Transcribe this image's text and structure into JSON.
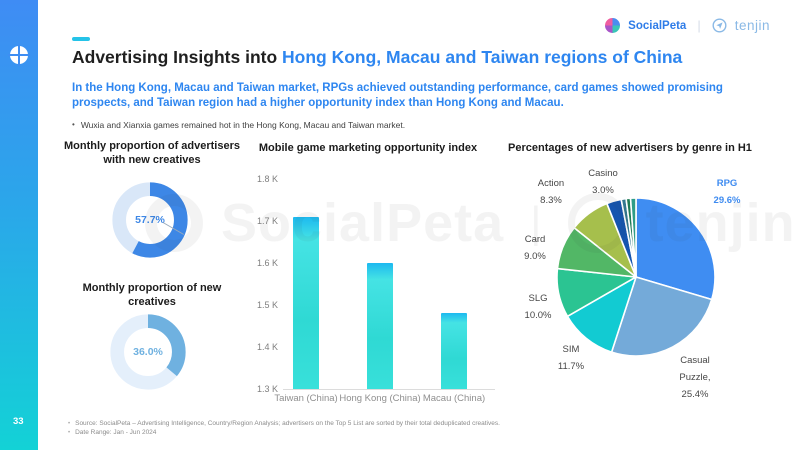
{
  "brand": {
    "socialpeta_label": "SocialPeta",
    "tenjin_label": "tenjin",
    "divider": "|"
  },
  "sidebar": {
    "page_number": "33"
  },
  "header": {
    "title_prefix": "Advertising Insights into ",
    "title_highlight": "Hong Kong, Macau and Taiwan regions of China",
    "subtitle": "In the Hong Kong, Macau and Taiwan market, RPGs achieved outstanding performance, card games showed promising prospects, and Taiwan region had a higher opportunity index than Hong Kong and Macau.",
    "bullet": "Wuxia and Xianxia games remained hot in the Hong Kong, Macau and Taiwan market."
  },
  "watermark": {
    "left": "SocialPeta",
    "divider": "|",
    "right": "tenjin"
  },
  "footer": {
    "notes": [
      "Source: SocialPeta – Advertising Intelligence, Country/Region Analysis; advertisers on the Top 5 List are sorted by their total deduplicated creatives.",
      "Date Range: Jan - Jun 2024"
    ]
  },
  "chart_data": [
    {
      "type": "donut",
      "title": "Monthly proportion of advertisers with new creatives",
      "value": 57.7,
      "label": "57.7%",
      "colors": {
        "active": "#3d87e6",
        "track": "#d9e7f8"
      }
    },
    {
      "type": "donut",
      "title": "Monthly proportion of new creatives",
      "value": 36.0,
      "label": "36.0%",
      "colors": {
        "active": "#6fb1e0",
        "track": "#e4effb"
      }
    },
    {
      "type": "bar",
      "title": "Mobile game marketing opportunity index",
      "categories": [
        "Taiwan (China)",
        "Hong Kong (China)",
        "Macau (China)"
      ],
      "values": [
        1.71,
        1.6,
        1.48
      ],
      "unit": "K",
      "ylim": [
        1.3,
        1.8
      ],
      "yticks": [
        "1.8 K",
        "1.7 K",
        "1.6 K",
        "1.5 K",
        "1.4 K",
        "1.3 K"
      ],
      "bar_colors": {
        "top": "#1db9f0",
        "main": "#2fd9d4"
      }
    },
    {
      "type": "pie",
      "title": "Percentages of new advertisers by genre in H1",
      "slices": [
        {
          "name": "RPG",
          "value": 29.6,
          "color": "#3f8df2",
          "label_lines": [
            "RPG",
            "29.6%"
          ],
          "highlight": true
        },
        {
          "name": "Casual Puzzle",
          "value": 25.4,
          "color": "#74aad9",
          "label_lines": [
            "Casual",
            "Puzzle,",
            "25.4%"
          ]
        },
        {
          "name": "SIM",
          "value": 11.7,
          "color": "#12cbd2",
          "label_lines": [
            "SIM",
            "11.7%"
          ]
        },
        {
          "name": "SLG",
          "value": 10.0,
          "color": "#2bc492",
          "label_lines": [
            "SLG",
            "10.0%"
          ]
        },
        {
          "name": "Card",
          "value": 9.0,
          "color": "#52b766",
          "label_lines": [
            "Card",
            "9.0%"
          ]
        },
        {
          "name": "Action",
          "value": 8.3,
          "color": "#a6bf4c",
          "label_lines": [
            "Action",
            "8.3%"
          ]
        },
        {
          "name": "Casino",
          "value": 3.0,
          "color": "#1655af",
          "label_lines": [
            "Casino",
            "3.0%"
          ]
        },
        {
          "name": "Other",
          "value": 1.0,
          "color": "#33788f",
          "label_lines": []
        },
        {
          "name": "Other",
          "value": 0.9,
          "color": "#1e7a55",
          "label_lines": []
        },
        {
          "name": "Other",
          "value": 1.1,
          "color": "#2f9d87",
          "label_lines": []
        }
      ]
    }
  ]
}
